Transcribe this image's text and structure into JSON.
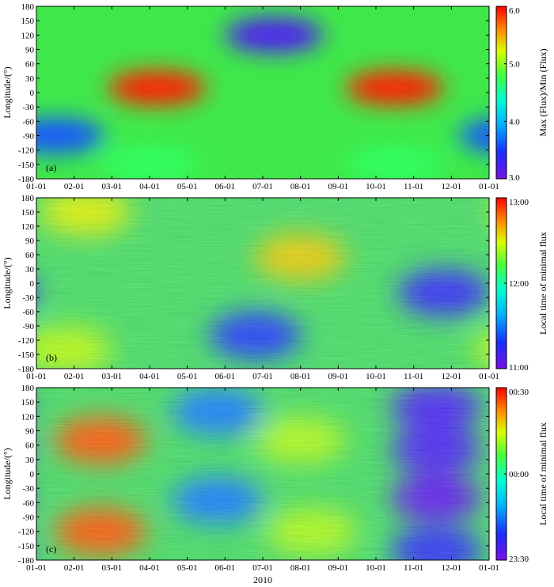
{
  "xlabel": "2010",
  "chart_data": [
    {
      "type": "heatmap",
      "panel": "(a)",
      "ylabel": "Longitude/(°)",
      "y_ticks": [
        180,
        150,
        120,
        90,
        60,
        30,
        0,
        -30,
        -60,
        -90,
        -120,
        -150,
        -180
      ],
      "ylim": [
        -180,
        180
      ],
      "x_tick_labels": [
        "01-01",
        "02-01",
        "03-01",
        "04-01",
        "05-01",
        "06-01",
        "07-01",
        "08-01",
        "09-01",
        "10-01",
        "11-01",
        "12-01",
        "01-01"
      ],
      "colorbar": {
        "label": "Max (Flux)/Min (Flux)",
        "min": 3.0,
        "max": 6.0,
        "ticks": [
          "6.0",
          "5.0",
          "4.0",
          "3.0"
        ]
      },
      "features": [
        {
          "month": 3.2,
          "lon": 10,
          "value": 5.9
        },
        {
          "month": 9.5,
          "lon": 10,
          "value": 5.9
        },
        {
          "month": 6.3,
          "lon": 120,
          "value": 3.2
        },
        {
          "month": 0.5,
          "lon": -90,
          "value": 3.6
        },
        {
          "month": 12.5,
          "lon": -90,
          "value": 3.6
        },
        {
          "month": 3.0,
          "lon": -150,
          "value": 4.7
        },
        {
          "month": 9.5,
          "lon": -150,
          "value": 4.7
        }
      ]
    },
    {
      "type": "heatmap",
      "panel": "(b)",
      "ylabel": "Longitude/(°)",
      "y_ticks": [
        180,
        150,
        120,
        90,
        60,
        30,
        0,
        -30,
        -60,
        -90,
        -120,
        -150,
        -180
      ],
      "ylim": [
        -180,
        180
      ],
      "x_tick_labels": [
        "01-01",
        "02-01",
        "03-01",
        "04-01",
        "05-01",
        "06-01",
        "07-01",
        "08-01",
        "09-01",
        "10-01",
        "11-01",
        "12-01",
        "01-01"
      ],
      "colorbar": {
        "label": "Local time of minimal flux",
        "min": "11:00",
        "max": "13:00",
        "ticks": [
          "13:00",
          "12:00",
          "11:00"
        ]
      },
      "features": [
        {
          "month": 7.0,
          "lon": 55,
          "value": "12:35"
        },
        {
          "month": 1.3,
          "lon": 150,
          "value": "12:30"
        },
        {
          "month": 0.8,
          "lon": -140,
          "value": "12:25"
        },
        {
          "month": 5.8,
          "lon": -110,
          "value": "11:20"
        },
        {
          "month": 10.8,
          "lon": -20,
          "value": "11:15"
        }
      ]
    },
    {
      "type": "heatmap",
      "panel": "(c)",
      "ylabel": "Longitude/(°)",
      "y_ticks": [
        180,
        150,
        120,
        90,
        60,
        30,
        0,
        -30,
        -60,
        -90,
        -120,
        -150,
        -180
      ],
      "ylim": [
        -180,
        180
      ],
      "x_tick_labels": [
        "01-01",
        "02-01",
        "03-01",
        "04-01",
        "05-01",
        "06-01",
        "07-01",
        "08-01",
        "09-01",
        "10-01",
        "11-01",
        "12-01",
        "01-01"
      ],
      "colorbar": {
        "label": "Local time of minimal flux",
        "min": "23:30",
        "max": "00:30",
        "ticks": [
          "00:30",
          "00:00",
          "23:30"
        ]
      },
      "features": [
        {
          "month": 1.7,
          "lon": 70,
          "value": "00:25"
        },
        {
          "month": 1.7,
          "lon": -120,
          "value": "00:25"
        },
        {
          "month": 7.0,
          "lon": 70,
          "value": "00:12"
        },
        {
          "month": 7.3,
          "lon": -120,
          "value": "00:12"
        },
        {
          "month": 4.8,
          "lon": 130,
          "value": "23:45"
        },
        {
          "month": 4.8,
          "lon": -55,
          "value": "23:45"
        },
        {
          "month": 10.6,
          "lon": 140,
          "value": "23:35"
        },
        {
          "month": 10.6,
          "lon": 50,
          "value": "23:35"
        },
        {
          "month": 10.6,
          "lon": -50,
          "value": "23:33"
        },
        {
          "month": 10.6,
          "lon": -160,
          "value": "23:38"
        }
      ]
    }
  ]
}
